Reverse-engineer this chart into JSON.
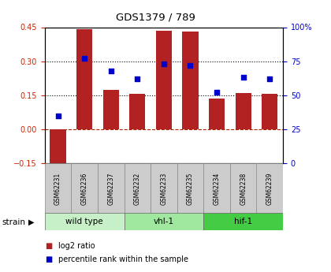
{
  "title": "GDS1379 / 789",
  "samples": [
    "GSM62231",
    "GSM62236",
    "GSM62237",
    "GSM62232",
    "GSM62233",
    "GSM62235",
    "GSM62234",
    "GSM62238",
    "GSM62239"
  ],
  "log2_ratio": [
    -0.19,
    0.44,
    0.175,
    0.155,
    0.435,
    0.43,
    0.135,
    0.16,
    0.155
  ],
  "percentile": [
    35,
    77,
    68,
    62,
    73,
    72,
    52,
    63,
    62
  ],
  "groups": [
    {
      "label": "wild type",
      "start": 0,
      "end": 3,
      "color": "#c8f0c8"
    },
    {
      "label": "vhl-1",
      "start": 3,
      "end": 6,
      "color": "#a0e8a0"
    },
    {
      "label": "hif-1",
      "start": 6,
      "end": 9,
      "color": "#44cc44"
    }
  ],
  "ylim_left": [
    -0.15,
    0.45
  ],
  "ylim_right": [
    0,
    100
  ],
  "yticks_left": [
    -0.15,
    0.0,
    0.15,
    0.3,
    0.45
  ],
  "yticks_right": [
    0,
    25,
    50,
    75,
    100
  ],
  "hline_y": [
    0.15,
    0.3
  ],
  "hline_zero": 0.0,
  "bar_color": "#b22222",
  "dot_color": "#0000cc",
  "bg_color": "#ffffff",
  "title_color": "#000000",
  "left_tick_color": "#cc2200",
  "right_tick_color": "#0000cc",
  "strain_label": "strain",
  "legend_items": [
    "log2 ratio",
    "percentile rank within the sample"
  ],
  "xtick_bg": "#cccccc"
}
